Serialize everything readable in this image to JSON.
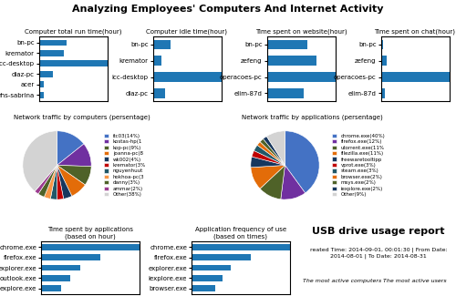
{
  "title": "Analyzing Employees' Computers And Internet Activity",
  "chart_data": [
    {
      "type": "bar",
      "orientation": "horizontal",
      "title": "Computer total run time(hour)",
      "categories": [
        "bn-pc",
        "kremator",
        "icc-desktop",
        "diaz-pc",
        "acer",
        "rhs-sabrina"
      ],
      "values": [
        120,
        110,
        300,
        60,
        20,
        20
      ],
      "xlim": [
        0,
        300
      ],
      "tick_labels": "y"
    },
    {
      "type": "bar",
      "orientation": "horizontal",
      "title": "Computer idle time(hour)",
      "categories": [
        "bn-pc",
        "kremator",
        "icc-desktop",
        "diaz-pc"
      ],
      "values": [
        80,
        40,
        310,
        55
      ],
      "xlim": [
        0,
        310
      ],
      "tick_labels": "y"
    },
    {
      "type": "bar",
      "orientation": "horizontal",
      "title": "Time spent on website(hour)",
      "categories": [
        "bn-pc",
        "zefeng",
        "operacoes-pc",
        "elim-87d"
      ],
      "values": [
        130,
        160,
        220,
        120
      ],
      "xlim": [
        0,
        220
      ],
      "tick_labels": "y"
    },
    {
      "type": "bar",
      "orientation": "horizontal",
      "title": "Time spent on chat(hour)",
      "categories": [
        "bn-pc",
        "zefeng",
        "operacoes-pc",
        "elim-87d"
      ],
      "values": [
        5,
        15,
        180,
        10
      ],
      "xlim": [
        0,
        180
      ],
      "tick_labels": "y"
    },
    {
      "type": "pie",
      "title": "Network traffic by computers (persentage)",
      "categories": [
        "itc03(14%)",
        "kostas-hp(1",
        "kop-pc(9%)",
        "joanna-pc(8",
        "wk002(4%)",
        "kremator(3%",
        "nguyenhuut",
        "hokhoa-pc(3",
        "danny(3%)",
        "ammar(2%)",
        "Other(38%)"
      ],
      "values": [
        14,
        11,
        9,
        8,
        4,
        3,
        3,
        3,
        3,
        2,
        38
      ],
      "colors": [
        "#4472c4",
        "#7030a0",
        "#4f6228",
        "#e36c09",
        "#17375e",
        "#c00000",
        "#215868",
        "#f79646",
        "#4f6228",
        "#9b3a8f",
        "#d3d3d3"
      ],
      "legend": "right"
    },
    {
      "type": "pie",
      "title": "Network traffic by applications (persentage)",
      "categories": [
        "chrome.exe(40%)",
        "firefox.exe(12%)",
        "utorrent.exe(11%",
        "filezilla.exe(11%)",
        "freewaretooltipp",
        "vprot.exe(3%)",
        "steam.exe(3%)",
        "browser.exe(2%)",
        "msys.exe(2%)",
        "iexplore.exe(2%)",
        "Other(9%)"
      ],
      "values": [
        40,
        12,
        11,
        11,
        5,
        3,
        3,
        2,
        2,
        2,
        9
      ],
      "colors": [
        "#4472c4",
        "#7030a0",
        "#4f6228",
        "#e36c09",
        "#17375e",
        "#c00000",
        "#215868",
        "#e36c09",
        "#4f6228",
        "#17375e",
        "#d3d3d3"
      ],
      "legend": "right"
    },
    {
      "type": "bar",
      "orientation": "horizontal",
      "title": "Time spent by applications",
      "subtitle": "(based on hour)",
      "categories": [
        "chrome.exe",
        "firefox.exe",
        "explorer.exe",
        "outlook.exe",
        "explore.exe"
      ],
      "values": [
        200,
        120,
        80,
        60,
        40
      ],
      "xlim": [
        0,
        200
      ],
      "tick_labels": "y"
    },
    {
      "type": "bar",
      "orientation": "horizontal",
      "title": "Application frequency of use",
      "subtitle": "(based on times)",
      "categories": [
        "chrome.exe",
        "firefox.exe",
        "explorer.exe",
        "iexplore.exe",
        "browser.exe"
      ],
      "values": [
        250,
        150,
        100,
        80,
        60
      ],
      "xlim": [
        0,
        250
      ],
      "tick_labels": "y"
    },
    {
      "type": "text",
      "title": "USB drive usage report",
      "subtitle": "reated Time: 2014-09-01, 00:01:30 | From Date: 2014-08-01 | To Date: 2014-08-31",
      "annotations": [
        "The most active computers",
        "The most active users"
      ]
    }
  ]
}
